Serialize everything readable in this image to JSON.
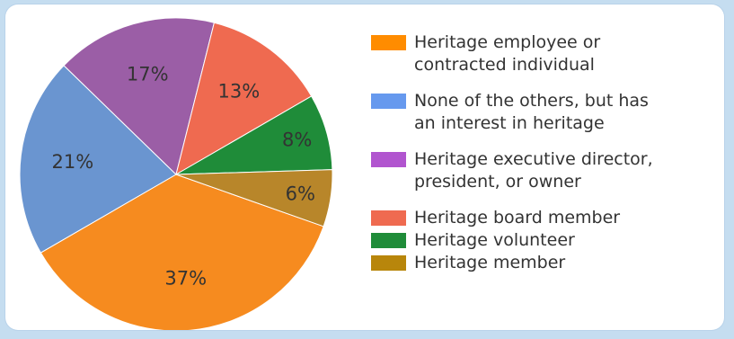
{
  "chart_data": {
    "type": "pie",
    "series": [
      {
        "label": "Heritage employee or\ncontracted individual",
        "value": 37,
        "display": "37%",
        "color": "#f68b1f",
        "legend_color": "#ff8c00"
      },
      {
        "label": "None of the others, but has\nan interest in heritage",
        "value": 21,
        "display": "21%",
        "color": "#6a95d0",
        "legend_color": "#6699ee"
      },
      {
        "label": "Heritage executive director,\npresident, or owner",
        "value": 17,
        "display": "17%",
        "color": "#9b5ea6",
        "legend_color": "#b155cf"
      },
      {
        "label": "Heritage board member",
        "value": 13,
        "display": "13%",
        "color": "#ef6a50",
        "legend_color": "#ef6a50"
      },
      {
        "label": "Heritage volunteer",
        "value": 8,
        "display": "8%",
        "color": "#1f8c39",
        "legend_color": "#1f8c39"
      },
      {
        "label": "Heritage member",
        "value": 6,
        "display": "6%",
        "color": "#b8862a",
        "legend_color": "#b8860b"
      }
    ]
  }
}
